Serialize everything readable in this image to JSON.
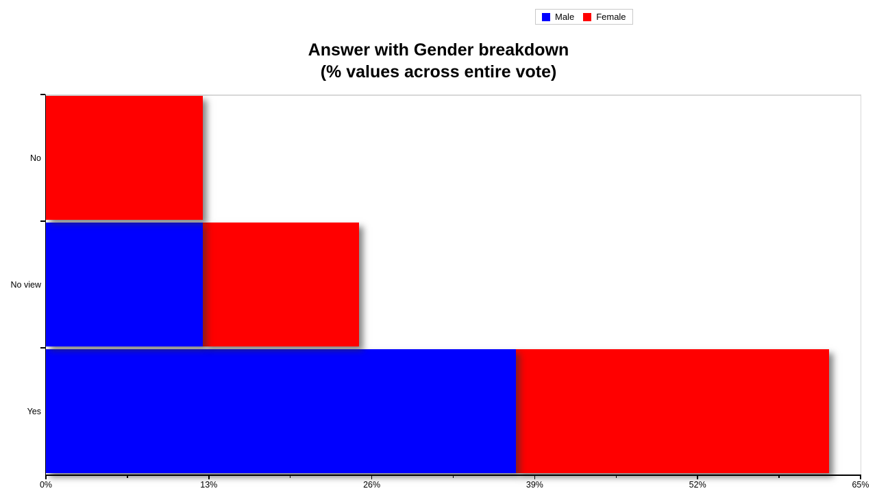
{
  "title": {
    "line1": "Answer with Gender breakdown",
    "line2": "(% values across entire vote)"
  },
  "chart_data": {
    "type": "bar",
    "orientation": "horizontal",
    "stacked": true,
    "title": "Answer with Gender breakdown (% values across entire vote)",
    "category_order": "top-to-bottom",
    "categories": [
      "No",
      "No view",
      "Yes"
    ],
    "series": [
      {
        "name": "Male",
        "color": "#0000ff",
        "values": [
          0,
          12.5,
          37.5
        ]
      },
      {
        "name": "Female",
        "color": "#ff0000",
        "values": [
          12.5,
          12.5,
          25
        ]
      }
    ],
    "xlabel": "",
    "ylabel": "",
    "xlim": [
      0,
      65
    ],
    "x_ticks": [
      0,
      13,
      26,
      39,
      52,
      65
    ],
    "x_tick_labels": [
      "0%",
      "13%",
      "26%",
      "39%",
      "52%",
      "65%"
    ],
    "minor_x_ticks_at_midpoints": true,
    "legend": {
      "position": "top-center",
      "labels": [
        "Male",
        "Female"
      ]
    },
    "grid": false,
    "bar_shadow": true,
    "units": "percent of entire vote"
  }
}
